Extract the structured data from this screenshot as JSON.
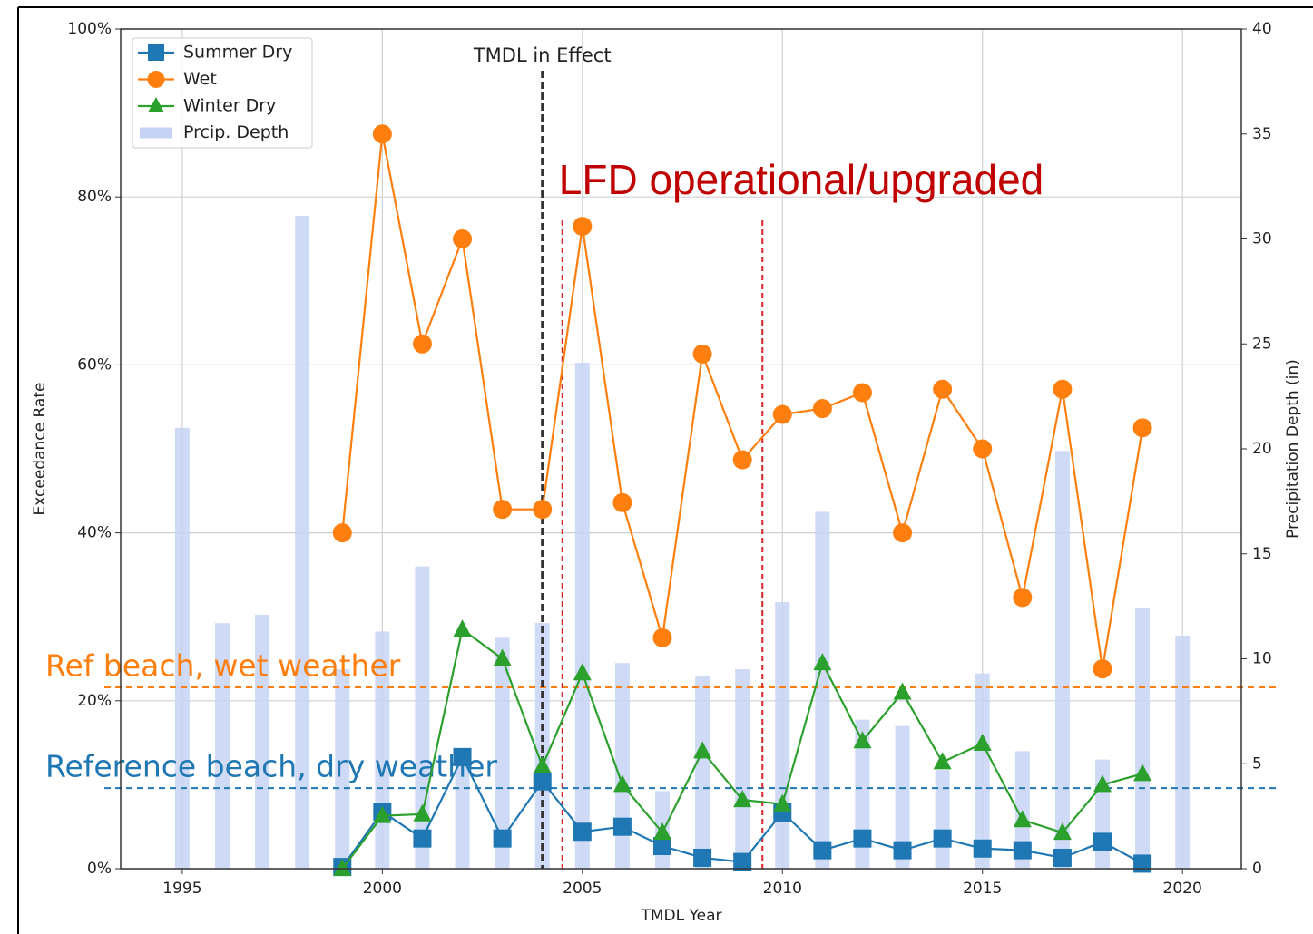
{
  "chart_data": {
    "type": "line",
    "xlabel": "TMDL Year",
    "ylabel": "Exceedance Rate",
    "y2label": "Precipitation Depth (in)",
    "x": [
      1999,
      2000,
      2001,
      2002,
      2003,
      2004,
      2005,
      2006,
      2007,
      2008,
      2009,
      2010,
      2011,
      2012,
      2013,
      2014,
      2015,
      2016,
      2017,
      2018,
      2019
    ],
    "series": [
      {
        "name": "Summer Dry",
        "color": "#1f77b4",
        "marker": "square",
        "values": [
          0.2,
          6.8,
          3.6,
          13.3,
          3.6,
          10.4,
          4.4,
          5.0,
          2.7,
          1.3,
          0.8,
          6.7,
          2.2,
          3.6,
          2.2,
          3.6,
          2.4,
          2.2,
          1.3,
          3.2,
          0.6
        ]
      },
      {
        "name": "Wet",
        "color": "#ff7f0e",
        "marker": "circle",
        "values": [
          40.0,
          87.5,
          62.5,
          75.0,
          42.8,
          42.8,
          76.5,
          43.6,
          27.5,
          61.3,
          48.7,
          54.1,
          54.8,
          56.7,
          40.0,
          57.1,
          50.0,
          32.3,
          57.1,
          23.8,
          52.5
        ]
      },
      {
        "name": "Winter Dry",
        "color": "#2ca02c",
        "marker": "triangle",
        "values": [
          0,
          6.3,
          6.5,
          28.5,
          25.0,
          12.2,
          23.3,
          10.0,
          4.3,
          14.0,
          8.2,
          7.7,
          24.5,
          15.2,
          21.0,
          12.7,
          14.9,
          5.8,
          4.3,
          10.0,
          11.3
        ]
      },
      {
        "name": "Prcip. Depth",
        "color": "#c6d3f4",
        "type": "bar",
        "axis": "y2",
        "x": [
          1995,
          1996,
          1997,
          1998,
          1999,
          2000,
          2001,
          2002,
          2003,
          2004,
          2005,
          2006,
          2007,
          2008,
          2009,
          2010,
          2011,
          2012,
          2013,
          2014,
          2015,
          2016,
          2017,
          2018,
          2019,
          2020
        ],
        "values": [
          21.0,
          11.7,
          12.1,
          31.1,
          9.5,
          11.3,
          14.4,
          5.5,
          11.0,
          11.7,
          24.1,
          9.8,
          3.7,
          9.2,
          9.5,
          12.7,
          17.0,
          7.1,
          6.8,
          4.7,
          9.3,
          5.6,
          19.9,
          5.2,
          12.4,
          11.1
        ]
      }
    ],
    "hlines": [
      {
        "value": 21.6,
        "label": "Ref beach, wet weather",
        "color": "#ff7f0e"
      },
      {
        "value": 9.6,
        "label": "Reference beach, dry weather",
        "color": "#1f77b4"
      }
    ],
    "vlines": [
      {
        "value": 2004,
        "label": "TMDL in Effect",
        "color": "#333333"
      },
      {
        "value": 2004.5,
        "color": "#d62728"
      },
      {
        "value": 2009.5,
        "color": "#d62728"
      }
    ],
    "annotation": {
      "text": "LFD operational/upgraded",
      "color": "#c00000"
    },
    "xlim": [
      1993.46,
      2021.47
    ],
    "xticks": [
      1995,
      2000,
      2005,
      2010,
      2015,
      2020
    ],
    "ylim": [
      0,
      100
    ],
    "yticks": [
      {
        "value": 0,
        "label": "0%"
      },
      {
        "value": 20,
        "label": "20%"
      },
      {
        "value": 40,
        "label": "40%"
      },
      {
        "value": 60,
        "label": "60%"
      },
      {
        "value": 80,
        "label": "80%"
      },
      {
        "value": 100,
        "label": "100%"
      }
    ],
    "y2lim": [
      0,
      40
    ],
    "y2ticks": [
      0,
      5,
      10,
      15,
      20,
      25,
      30,
      35,
      40
    ],
    "grid": true,
    "legend": "upper left"
  }
}
